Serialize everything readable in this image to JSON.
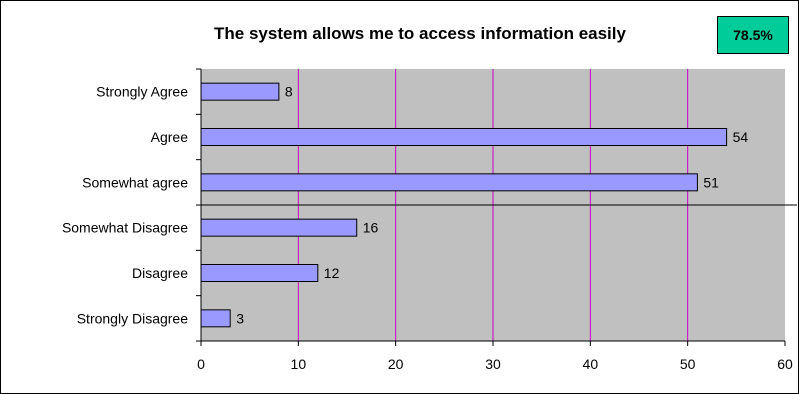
{
  "title": "The system allows me to access information easily",
  "badge": {
    "text": "78.5%",
    "color": "#00cc99"
  },
  "chart_data": {
    "type": "bar",
    "orientation": "horizontal",
    "title": "The system allows me to access information easily",
    "categories": [
      "Strongly Agree",
      "Agree",
      "Somewhat agree",
      "Somewhat Disagree",
      "Disagree",
      "Strongly Disagree"
    ],
    "values": [
      8,
      54,
      51,
      16,
      12,
      3
    ],
    "xlim": [
      0,
      60
    ],
    "xticks": [
      0,
      10,
      20,
      30,
      40,
      50,
      60
    ],
    "xlabel": "",
    "ylabel": "",
    "grid": true,
    "colors": {
      "bar": "#9999ff",
      "plot_background": "#c0c0c0",
      "gridline": "#cc00cc",
      "divider": "#000000"
    }
  }
}
